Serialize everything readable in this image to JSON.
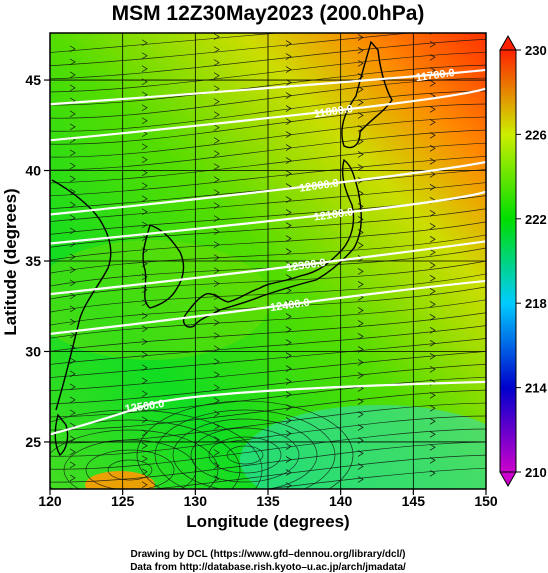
{
  "chart_data": {
    "type": "heatmap",
    "title": "MSM 12Z30May2023 (200.0hPa)",
    "xlabel": "Longitude (degrees)",
    "ylabel": "Latitude  (degrees)",
    "xlim": [
      120,
      150
    ],
    "ylim": [
      22.4,
      47.6
    ],
    "x_ticks": [
      120,
      125,
      130,
      135,
      140,
      145,
      150
    ],
    "y_ticks": [
      25,
      30,
      35,
      40,
      45
    ],
    "grid": true,
    "colorbar": {
      "range": [
        210,
        230
      ],
      "ticks": [
        210,
        214,
        218,
        222,
        226,
        230
      ],
      "colors": [
        "#cc00cc",
        "#0000cc",
        "#00ccff",
        "#00dd00",
        "#ccee00",
        "#ff2200"
      ]
    },
    "height_contours": [
      {
        "value": "11700.0",
        "label_lon": 146.5,
        "label_lat": 45.3
      },
      {
        "value": "11800.0",
        "label_lon": 139.5,
        "label_lat": 43.3
      },
      {
        "value": "12000.0",
        "label_lon": 138.5,
        "label_lat": 39.2
      },
      {
        "value": "12100.0",
        "label_lon": 139.5,
        "label_lat": 37.6
      },
      {
        "value": "12300.0",
        "label_lon": 137.6,
        "label_lat": 34.8
      },
      {
        "value": "12400.0",
        "label_lon": 136.5,
        "label_lat": 32.6
      },
      {
        "value": "12500.0",
        "label_lon": 126.5,
        "label_lat": 27.0
      }
    ]
  },
  "credits": {
    "line1": "Drawing by DCL (https://www.gfd–dennou.org/library/dcl/)",
    "line2": "Data from http://database.rish.kyoto–u.ac.jp/arch/jmadata/"
  }
}
